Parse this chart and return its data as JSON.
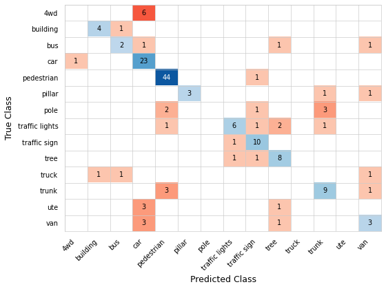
{
  "classes": [
    "4wd",
    "building",
    "bus",
    "car",
    "pedestrian",
    "pillar",
    "pole",
    "traffic lights",
    "traffic sign",
    "tree",
    "truck",
    "trunk",
    "ute",
    "van"
  ],
  "matrix": [
    [
      0,
      0,
      0,
      6,
      0,
      0,
      0,
      0,
      0,
      0,
      0,
      0,
      0,
      0
    ],
    [
      0,
      4,
      1,
      0,
      0,
      0,
      0,
      0,
      0,
      0,
      0,
      0,
      0,
      0
    ],
    [
      0,
      0,
      2,
      1,
      0,
      0,
      0,
      0,
      0,
      1,
      0,
      0,
      0,
      1
    ],
    [
      1,
      0,
      0,
      23,
      0,
      0,
      0,
      0,
      0,
      0,
      0,
      0,
      0,
      0
    ],
    [
      0,
      0,
      0,
      0,
      44,
      0,
      0,
      0,
      1,
      0,
      0,
      0,
      0,
      0
    ],
    [
      0,
      0,
      0,
      0,
      0,
      3,
      0,
      0,
      0,
      0,
      0,
      1,
      0,
      1
    ],
    [
      0,
      0,
      0,
      0,
      2,
      0,
      0,
      0,
      1,
      0,
      0,
      3,
      0,
      0
    ],
    [
      0,
      0,
      0,
      0,
      1,
      0,
      0,
      6,
      1,
      2,
      0,
      1,
      0,
      0
    ],
    [
      0,
      0,
      0,
      0,
      0,
      0,
      0,
      1,
      10,
      0,
      0,
      0,
      0,
      0
    ],
    [
      0,
      0,
      0,
      0,
      0,
      0,
      0,
      1,
      1,
      8,
      0,
      0,
      0,
      0
    ],
    [
      0,
      1,
      1,
      0,
      0,
      0,
      0,
      0,
      0,
      0,
      0,
      0,
      0,
      1
    ],
    [
      0,
      0,
      0,
      0,
      3,
      0,
      0,
      0,
      0,
      0,
      0,
      9,
      0,
      1
    ],
    [
      0,
      0,
      0,
      3,
      0,
      0,
      0,
      0,
      0,
      1,
      0,
      0,
      0,
      0
    ],
    [
      0,
      0,
      0,
      3,
      0,
      0,
      0,
      0,
      0,
      1,
      0,
      0,
      0,
      3
    ]
  ],
  "xlabel": "Predicted Class",
  "ylabel": "True Class",
  "figsize": [
    5.6,
    4.2
  ],
  "dpi": 100,
  "grid_color": "#cccccc",
  "grid_linewidth": 0.5,
  "blue_min": 0.25,
  "blue_max": 0.85,
  "red_min": 0.15,
  "red_max": 0.55,
  "fontsize_ticks": 7,
  "fontsize_annot": 7,
  "fontsize_label": 9
}
